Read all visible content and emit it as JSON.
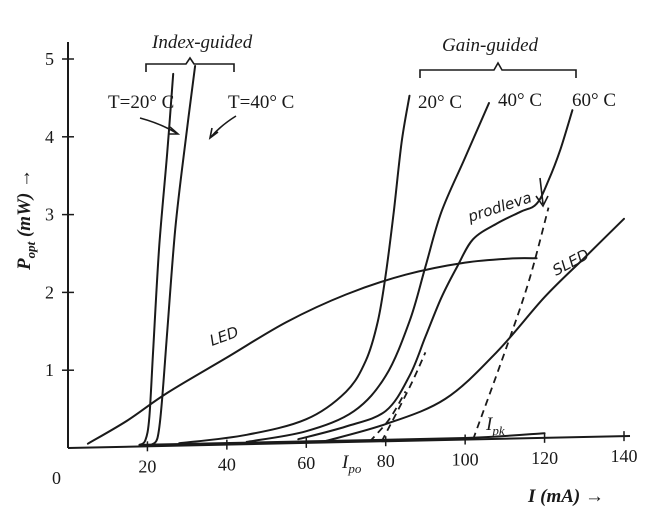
{
  "chart_data": {
    "type": "line",
    "xlabel": "I (mA) →",
    "ylabel": "P",
    "ylabel_sub": "opt",
    "ylabel_unit": " (mW) →",
    "xlim": [
      0,
      140
    ],
    "ylim": [
      0,
      5
    ],
    "origin_label": "0",
    "x_ticks": [
      20,
      40,
      60,
      80,
      100,
      120,
      140
    ],
    "y_ticks": [
      1,
      2,
      3,
      4,
      5
    ],
    "grid": false,
    "groups": [
      {
        "label": "Index-guided"
      },
      {
        "label": "Gain-guided"
      }
    ],
    "series": [
      {
        "key": "ig20",
        "label": "T=20° C",
        "points": [
          [
            18,
            0.02
          ],
          [
            19.5,
            0.08
          ],
          [
            20.5,
            0.4
          ],
          [
            21.5,
            1.3
          ],
          [
            23,
            2.6
          ],
          [
            25,
            3.8
          ],
          [
            26.5,
            4.8
          ]
        ]
      },
      {
        "key": "ig40",
        "label": "T=40° C",
        "points": [
          [
            21,
            0.02
          ],
          [
            22.5,
            0.1
          ],
          [
            23.5,
            0.5
          ],
          [
            25,
            1.5
          ],
          [
            27,
            2.8
          ],
          [
            29.5,
            3.9
          ],
          [
            32,
            4.9
          ]
        ]
      },
      {
        "key": "gg20",
        "label": "20° C",
        "points": [
          [
            28,
            0.03
          ],
          [
            45,
            0.12
          ],
          [
            60,
            0.35
          ],
          [
            70,
            0.7
          ],
          [
            75,
            1.1
          ],
          [
            78,
            1.6
          ],
          [
            80,
            2.2
          ],
          [
            82,
            3.0
          ],
          [
            84,
            3.9
          ],
          [
            86,
            4.5
          ]
        ]
      },
      {
        "key": "gg40",
        "label": "40° C",
        "points": [
          [
            45,
            0.03
          ],
          [
            60,
            0.15
          ],
          [
            72,
            0.45
          ],
          [
            80,
            0.9
          ],
          [
            86,
            1.6
          ],
          [
            90,
            2.3
          ],
          [
            94,
            3.0
          ],
          [
            100,
            3.7
          ],
          [
            106,
            4.4
          ]
        ]
      },
      {
        "key": "gg60",
        "label": "60° C",
        "points": [
          [
            58,
            0.05
          ],
          [
            70,
            0.2
          ],
          [
            80,
            0.45
          ],
          [
            86,
            0.9
          ],
          [
            90,
            1.4
          ],
          [
            94,
            1.9
          ],
          [
            98,
            2.3
          ],
          [
            102,
            2.65
          ],
          [
            108,
            2.85
          ],
          [
            114,
            3.0
          ],
          [
            118,
            3.1
          ],
          [
            121,
            3.4
          ],
          [
            124,
            3.8
          ],
          [
            127,
            4.3
          ]
        ]
      },
      {
        "key": "led",
        "label": "LED",
        "points": [
          [
            5,
            0.05
          ],
          [
            15,
            0.35
          ],
          [
            25,
            0.7
          ],
          [
            40,
            1.15
          ],
          [
            55,
            1.6
          ],
          [
            70,
            1.95
          ],
          [
            85,
            2.2
          ],
          [
            100,
            2.35
          ],
          [
            112,
            2.4
          ],
          [
            118,
            2.4
          ]
        ]
      },
      {
        "key": "sled",
        "label": "SLED",
        "points": [
          [
            65,
            0.02
          ],
          [
            80,
            0.22
          ],
          [
            95,
            0.6
          ],
          [
            108,
            1.2
          ],
          [
            120,
            1.9
          ],
          [
            130,
            2.4
          ],
          [
            140,
            2.9
          ]
        ]
      },
      {
        "key": "base",
        "label": "",
        "points": [
          [
            18,
            0.02
          ],
          [
            60,
            0.02
          ],
          [
            100,
            0.02
          ],
          [
            120,
            0.06
          ]
        ]
      }
    ],
    "dashed_lines": [
      {
        "key": "ipo",
        "points": [
          [
            79,
            0.0
          ],
          [
            86,
            0.75
          ],
          [
            90,
            1.2
          ]
        ]
      },
      {
        "key": "ipo2",
        "points": [
          [
            76,
            0.0
          ],
          [
            81,
            0.35
          ],
          [
            85,
            0.7
          ]
        ]
      },
      {
        "key": "ipk",
        "points": [
          [
            102,
            0.0
          ],
          [
            110,
            1.2
          ],
          [
            116,
            2.1
          ],
          [
            121,
            3.05
          ]
        ]
      }
    ],
    "annotations": [
      {
        "key": "prodleva",
        "text": "prodleva"
      },
      {
        "key": "ipk",
        "text": "I",
        "sub": "pk"
      },
      {
        "key": "ipo",
        "text": "I",
        "sub": "po"
      }
    ]
  }
}
